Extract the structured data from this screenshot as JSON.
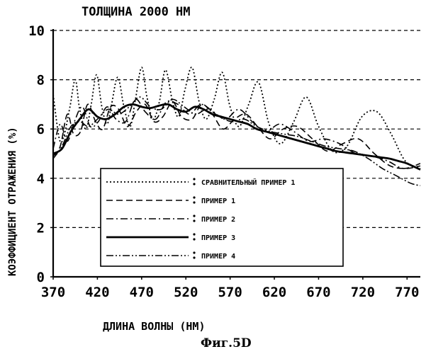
{
  "chart_data": {
    "type": "line",
    "title": "ТОЛЩИНА 2000 НМ",
    "xlabel": "ДЛИНА ВОЛНЫ (НМ)",
    "ylabel": "КОЭФФИЦИЕНТ ОТРАЖЕНИЯ (%)",
    "caption": "Фиг.5D",
    "xlim": [
      370,
      785
    ],
    "ylim": [
      0,
      10
    ],
    "xticks": [
      370,
      420,
      470,
      520,
      570,
      620,
      670,
      720,
      770
    ],
    "yticks": [
      0,
      2,
      4,
      6,
      8,
      10
    ],
    "grid": "horizontal dashed",
    "legend_position": "bottom-center",
    "series": [
      {
        "name": "СРАВНИТЕЛЬНЫЙ ПРИМЕР 1",
        "style": "dotted",
        "x": [
          370,
          377,
          382,
          389,
          395,
          400,
          407,
          413,
          419,
          425,
          431,
          436,
          443,
          450,
          457,
          463,
          470,
          476,
          483,
          490,
          497,
          505,
          512,
          519,
          527,
          535,
          543,
          552,
          561,
          570,
          580,
          591,
          602,
          614,
          627,
          642,
          656,
          670,
          686,
          702,
          719,
          736,
          752,
          768,
          785
        ],
        "y": [
          7.4,
          5.6,
          5.7,
          6.9,
          8.0,
          6.8,
          6.0,
          7.0,
          8.2,
          6.9,
          6.2,
          7.0,
          8.1,
          6.9,
          6.1,
          7.2,
          8.5,
          7.3,
          6.4,
          7.1,
          8.4,
          7.1,
          6.5,
          7.6,
          8.5,
          7.1,
          6.4,
          7.2,
          8.3,
          6.9,
          6.1,
          7.0,
          7.9,
          6.2,
          5.4,
          6.3,
          7.3,
          6.1,
          5.1,
          5.3,
          6.5,
          6.7,
          5.8,
          4.7,
          4.4
        ]
      },
      {
        "name": "ПРИМЕР 1",
        "style": "dashed",
        "x": [
          370,
          378,
          386,
          393,
          401,
          409,
          418,
          426,
          435,
          444,
          454,
          464,
          474,
          484,
          494,
          505,
          515,
          527,
          538,
          550,
          562,
          575,
          588,
          601,
          615,
          630,
          646,
          663,
          680,
          697,
          715,
          733,
          751,
          769,
          785
        ],
        "y": [
          4.9,
          5.3,
          6.6,
          5.8,
          5.9,
          7.0,
          6.3,
          6.0,
          6.9,
          6.8,
          6.1,
          6.7,
          7.0,
          6.3,
          6.5,
          7.1,
          6.5,
          6.4,
          7.0,
          6.6,
          6.0,
          6.4,
          6.6,
          6.1,
          5.6,
          6.0,
          6.1,
          5.6,
          5.1,
          5.4,
          5.6,
          5.0,
          4.5,
          4.4,
          4.5
        ]
      },
      {
        "name": "ПРИМЕР 2",
        "style": "dash-dot",
        "x": [
          370,
          378,
          386,
          394,
          403,
          412,
          421,
          431,
          441,
          452,
          463,
          474,
          486,
          498,
          511,
          524,
          537,
          551,
          565,
          580,
          595,
          610,
          626,
          642,
          659,
          676,
          694,
          712,
          730,
          748,
          766,
          785
        ],
        "y": [
          5.2,
          6.2,
          5.5,
          6.3,
          6.9,
          6.1,
          6.3,
          6.9,
          6.4,
          6.3,
          7.2,
          6.7,
          6.4,
          7.1,
          7.0,
          6.6,
          7.0,
          6.7,
          6.4,
          6.8,
          6.3,
          5.9,
          6.2,
          5.9,
          5.5,
          5.6,
          5.4,
          5.0,
          4.9,
          4.7,
          4.4,
          4.6
        ]
      },
      {
        "name": "ПРИМЕР 3",
        "style": "solid",
        "x": [
          370,
          380,
          390,
          400,
          410,
          420,
          430,
          440,
          450,
          460,
          470,
          480,
          490,
          500,
          510,
          520,
          530,
          540,
          550,
          560,
          570,
          580,
          590,
          600,
          610,
          620,
          630,
          640,
          650,
          660,
          670,
          680,
          690,
          700,
          710,
          720,
          730,
          740,
          750,
          760,
          770,
          785
        ],
        "y": [
          5.0,
          5.2,
          5.9,
          6.4,
          6.8,
          6.5,
          6.4,
          6.6,
          6.9,
          7.0,
          6.9,
          6.85,
          6.95,
          7.0,
          6.8,
          6.7,
          6.9,
          6.8,
          6.6,
          6.5,
          6.4,
          6.3,
          6.2,
          6.0,
          5.9,
          5.8,
          5.7,
          5.6,
          5.5,
          5.4,
          5.3,
          5.2,
          5.1,
          5.05,
          5.0,
          4.95,
          4.9,
          4.85,
          4.8,
          4.7,
          4.6,
          4.35
        ]
      },
      {
        "name": "ПРИМЕР 4",
        "style": "dash-dot-dot",
        "x": [
          370,
          380,
          390,
          400,
          410,
          420,
          432,
          444,
          456,
          468,
          480,
          492,
          505,
          518,
          531,
          544,
          558,
          572,
          586,
          600,
          615,
          630,
          646,
          662,
          678,
          694,
          710,
          726,
          742,
          758,
          774,
          785
        ],
        "y": [
          4.8,
          5.3,
          6.1,
          6.3,
          6.1,
          6.4,
          6.8,
          6.6,
          6.9,
          7.3,
          6.9,
          6.8,
          7.2,
          6.9,
          6.6,
          6.8,
          6.5,
          6.3,
          6.4,
          6.1,
          5.9,
          5.8,
          5.7,
          5.5,
          5.3,
          5.2,
          5.1,
          4.8,
          4.4,
          4.1,
          3.8,
          3.7
        ]
      }
    ]
  }
}
